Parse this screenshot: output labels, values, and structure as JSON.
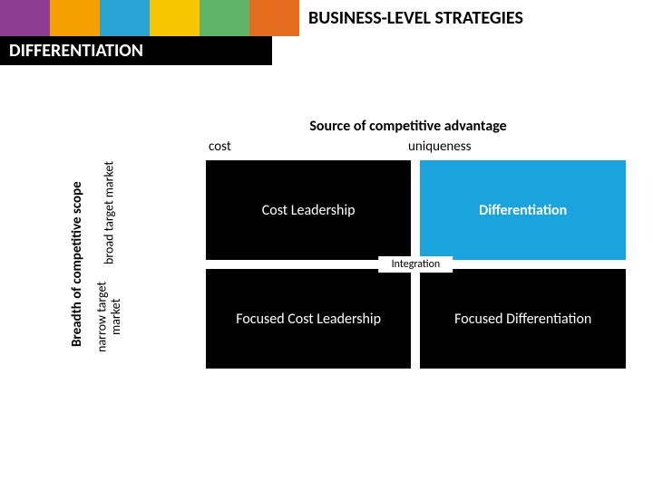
{
  "header": {
    "title": "BUSINESS-LEVEL STRATEGIES",
    "color_blocks": [
      "#8e3e92",
      "#f4a000",
      "#2aa4d4",
      "#f7c600",
      "#5fb46a",
      "#e36c1f"
    ]
  },
  "section": {
    "banner": "DIFFERENTIATION"
  },
  "diagram": {
    "top_axis": "Source of competitive advantage",
    "columns": {
      "left": "cost",
      "right": "uniqueness"
    },
    "left_axis_main": "Breadth of competitive scope",
    "rows": {
      "top": "broad target market",
      "bottom": "narrow target market"
    },
    "cells": {
      "tl": "Cost Leadership",
      "tr": "Differentiation",
      "bl": "Focused Cost Leadership",
      "br": "Focused Differentiation"
    },
    "center_label": "Integration",
    "highlight_color": "#1aa3dc",
    "cell_bg": "#000000",
    "cell_text": "#ffffff"
  }
}
